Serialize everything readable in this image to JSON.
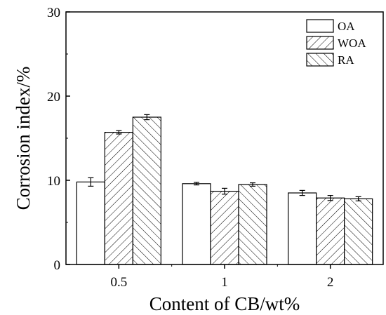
{
  "chart_data": {
    "type": "bar",
    "categories": [
      "0.5",
      "1",
      "2"
    ],
    "series": [
      {
        "name": "OA",
        "values": [
          9.8,
          9.6,
          8.5
        ],
        "errors": [
          0.5,
          0.15,
          0.3
        ],
        "pattern": "none"
      },
      {
        "name": "WOA",
        "values": [
          15.7,
          8.7,
          7.9
        ],
        "errors": [
          0.2,
          0.35,
          0.3
        ],
        "pattern": "forward-hatch"
      },
      {
        "name": "RA",
        "values": [
          17.5,
          9.5,
          7.8
        ],
        "errors": [
          0.3,
          0.2,
          0.25
        ],
        "pattern": "back-hatch"
      }
    ],
    "xlabel": "Content of CB/wt%",
    "ylabel": "Corrosion index/%",
    "ylim": [
      0,
      30
    ],
    "yticks": [
      "0",
      "10",
      "20",
      "30"
    ],
    "grid": false,
    "legend_position": "top-right",
    "error_bars": true
  }
}
